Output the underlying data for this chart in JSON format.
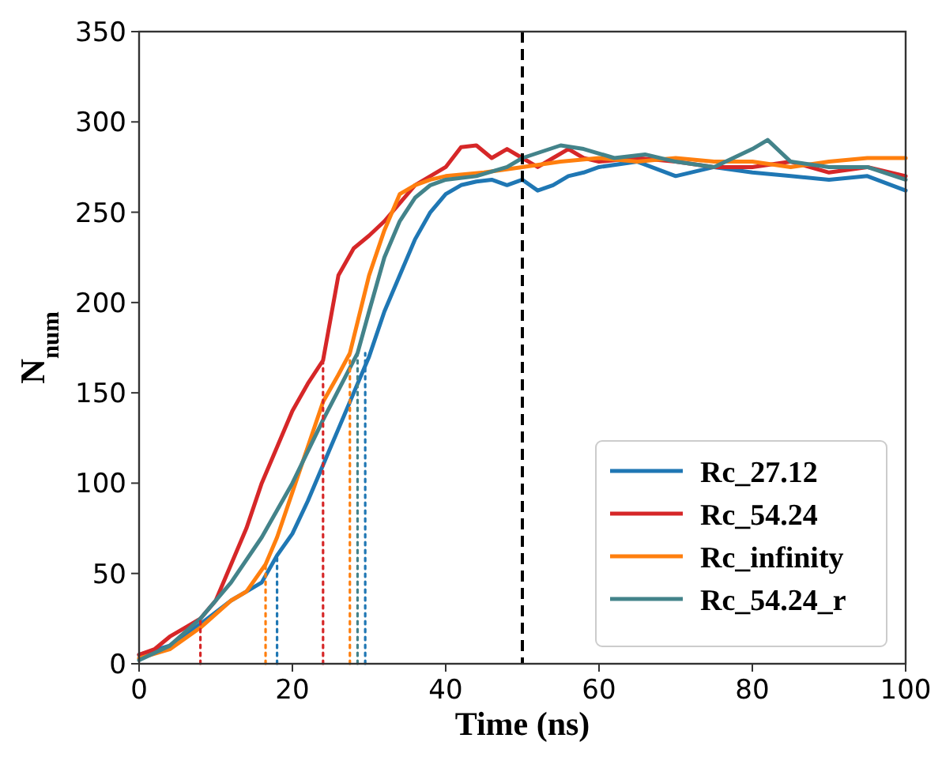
{
  "chart_data": {
    "type": "line",
    "xlabel": "Time (ns)",
    "ylabel": "N$_{num}$",
    "xlim": [
      0,
      100
    ],
    "xticks": [
      0,
      20,
      40,
      60,
      80,
      100
    ],
    "ylim": [
      0,
      350
    ],
    "yticks": [
      0,
      50,
      100,
      150,
      200,
      250,
      300,
      350
    ],
    "grid": false,
    "legend": "bottom right",
    "ref_lines": [
      {
        "axis": "x",
        "value": 50,
        "color": "#000000",
        "line_style": "dashed"
      }
    ],
    "series": [
      {
        "name": "Rc_27.12",
        "color": "#1f77b4",
        "x": [
          0,
          4,
          8,
          12,
          14,
          16,
          18,
          20,
          22,
          24,
          26,
          28,
          30,
          32,
          34,
          36,
          38,
          40,
          42,
          44,
          46,
          48,
          50,
          52,
          54,
          56,
          58,
          60,
          65,
          70,
          75,
          80,
          85,
          90,
          95,
          100
        ],
        "values": [
          5,
          10,
          22,
          35,
          40,
          45,
          60,
          72,
          90,
          110,
          130,
          150,
          170,
          195,
          215,
          235,
          250,
          260,
          265,
          267,
          268,
          265,
          268,
          262,
          265,
          270,
          272,
          275,
          278,
          270,
          275,
          272,
          270,
          268,
          270,
          262
        ]
      },
      {
        "name": "Rc_54.24",
        "color": "#d62728",
        "x": [
          0,
          2,
          4,
          6,
          8,
          10,
          12,
          14,
          16,
          18,
          20,
          22,
          24,
          26,
          28,
          30,
          32,
          34,
          36,
          38,
          40,
          42,
          44,
          46,
          48,
          50,
          52,
          54,
          56,
          58,
          60,
          65,
          70,
          75,
          80,
          85,
          90,
          95,
          100
        ],
        "values": [
          5,
          8,
          15,
          20,
          25,
          35,
          55,
          75,
          100,
          120,
          140,
          155,
          168,
          215,
          230,
          237,
          245,
          255,
          265,
          270,
          275,
          286,
          287,
          280,
          285,
          280,
          275,
          280,
          285,
          280,
          278,
          280,
          278,
          275,
          275,
          278,
          272,
          275,
          270
        ]
      },
      {
        "name": "Rc_infinity",
        "color": "#ff7f0e",
        "x": [
          0,
          4,
          8,
          12,
          14,
          16.5,
          18,
          20,
          22,
          24,
          26,
          27.5,
          30,
          32,
          34,
          36,
          38,
          40,
          45,
          50,
          55,
          60,
          65,
          70,
          75,
          80,
          85,
          90,
          95,
          100
        ],
        "values": [
          3,
          8,
          20,
          35,
          40,
          55,
          70,
          95,
          120,
          145,
          160,
          172,
          215,
          240,
          260,
          265,
          268,
          270,
          272,
          275,
          278,
          280,
          278,
          280,
          278,
          278,
          275,
          278,
          280,
          280
        ]
      },
      {
        "name": "Rc_54.24_r",
        "color": "#43838a",
        "x": [
          0,
          4,
          8,
          12,
          16,
          20,
          24,
          28.5,
          30,
          32,
          34,
          36,
          38,
          40,
          44,
          48,
          50,
          55,
          58,
          62,
          66,
          70,
          75,
          80,
          82,
          85,
          90,
          95,
          100
        ],
        "values": [
          2,
          10,
          25,
          45,
          70,
          100,
          135,
          172,
          195,
          225,
          245,
          258,
          265,
          268,
          270,
          275,
          280,
          287,
          285,
          280,
          282,
          278,
          275,
          285,
          290,
          278,
          275,
          275,
          268
        ]
      },
      {
        "type": "line",
        "line_style": "dotted",
        "color": "#d62728",
        "x": [
          8,
          8
        ],
        "values": [
          0,
          25
        ]
      },
      {
        "type": "line",
        "line_style": "dotted",
        "color": "#d62728",
        "x": [
          24,
          24
        ],
        "values": [
          0,
          168
        ]
      },
      {
        "type": "line",
        "line_style": "dotted",
        "color": "#ff7f0e",
        "x": [
          16.5,
          16.5
        ],
        "values": [
          0,
          55
        ]
      },
      {
        "type": "line",
        "line_style": "dotted",
        "color": "#ff7f0e",
        "x": [
          27.5,
          27.5
        ],
        "values": [
          0,
          172
        ]
      },
      {
        "type": "line",
        "line_style": "dotted",
        "color": "#43838a",
        "x": [
          28.5,
          28.5
        ],
        "values": [
          0,
          172
        ]
      },
      {
        "type": "line",
        "line_style": "dotted",
        "color": "#1f77b4",
        "x": [
          18,
          18
        ],
        "values": [
          0,
          60
        ]
      },
      {
        "type": "line",
        "line_style": "dotted",
        "color": "#1f77b4",
        "x": [
          29.5,
          29.5
        ],
        "values": [
          0,
          172
        ]
      }
    ]
  }
}
